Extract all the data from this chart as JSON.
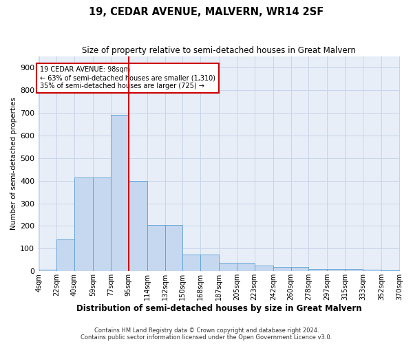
{
  "title": "19, CEDAR AVENUE, MALVERN, WR14 2SF",
  "subtitle": "Size of property relative to semi-detached houses in Great Malvern",
  "xlabel": "Distribution of semi-detached houses by size in Great Malvern",
  "ylabel": "Number of semi-detached properties",
  "footer_line1": "Contains HM Land Registry data © Crown copyright and database right 2024.",
  "footer_line2": "Contains public sector information licensed under the Open Government Licence v3.0.",
  "annotation_title": "19 CEDAR AVENUE: 98sqm",
  "annotation_line1": "← 63% of semi-detached houses are smaller (1,310)",
  "annotation_line2": "35% of semi-detached houses are larger (725) →",
  "bin_edges": [
    4,
    22,
    40,
    59,
    77,
    95,
    114,
    132,
    150,
    168,
    187,
    205,
    223,
    242,
    260,
    278,
    297,
    315,
    333,
    352,
    370
  ],
  "bar_heights": [
    8,
    140,
    415,
    415,
    690,
    400,
    205,
    205,
    75,
    75,
    37,
    37,
    25,
    20,
    20,
    10,
    10,
    10,
    8,
    5
  ],
  "bar_color": "#c5d8f0",
  "bar_edge_color": "#5a9fd4",
  "vline_x": 95,
  "vline_color": "#cc0000",
  "annotation_box_color": "#cc0000",
  "grid_color": "#c8d4e8",
  "background_color": "#e8eef8",
  "ylim": [
    0,
    950
  ],
  "yticks": [
    0,
    100,
    200,
    300,
    400,
    500,
    600,
    700,
    800,
    900
  ]
}
